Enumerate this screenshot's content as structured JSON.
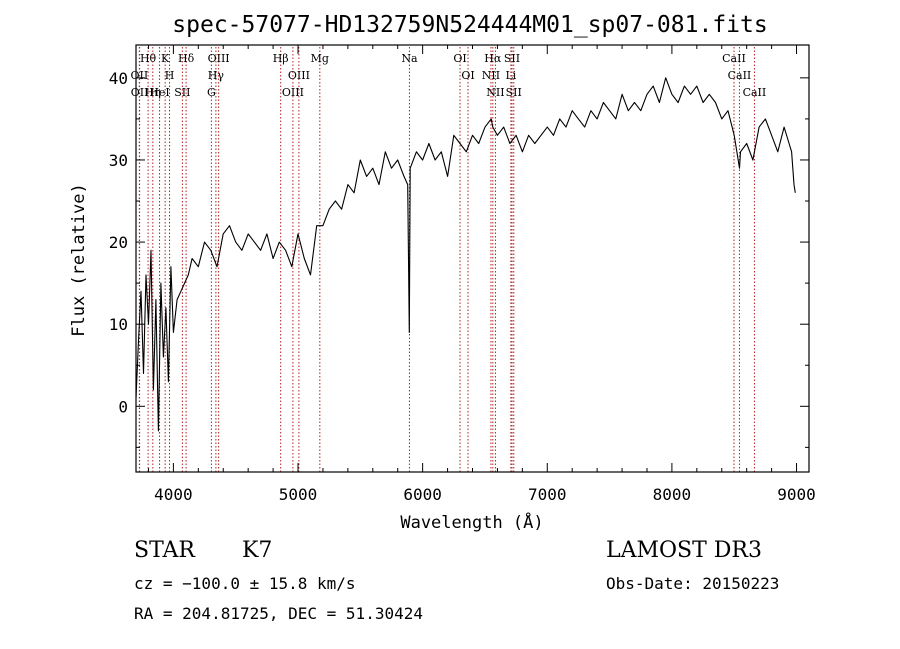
{
  "chart_data": {
    "type": "line",
    "title": "spec-57077-HD132759N524444M01_sp07-081.fits",
    "xlabel": "Wavelength (Å)",
    "ylabel": "Flux (relative)",
    "xlim": [
      3700,
      9100
    ],
    "ylim": [
      -8,
      44
    ],
    "xticks": [
      4000,
      5000,
      6000,
      7000,
      8000,
      9000
    ],
    "yticks": [
      0,
      10,
      20,
      30,
      40
    ],
    "grid": false,
    "legend": "none",
    "series": [
      {
        "line_color": "#000000",
        "x": [
          3700,
          3720,
          3740,
          3760,
          3780,
          3800,
          3820,
          3840,
          3860,
          3880,
          3900,
          3920,
          3940,
          3960,
          3980,
          4000,
          4030,
          4060,
          4090,
          4120,
          4150,
          4200,
          4250,
          4300,
          4350,
          4400,
          4450,
          4500,
          4550,
          4600,
          4650,
          4700,
          4750,
          4800,
          4850,
          4900,
          4950,
          5000,
          5050,
          5100,
          5150,
          5200,
          5250,
          5300,
          5350,
          5400,
          5450,
          5500,
          5550,
          5600,
          5650,
          5700,
          5750,
          5800,
          5850,
          5880,
          5893,
          5900,
          5950,
          6000,
          6050,
          6100,
          6150,
          6200,
          6250,
          6300,
          6350,
          6400,
          6450,
          6500,
          6550,
          6563,
          6600,
          6650,
          6700,
          6750,
          6800,
          6850,
          6900,
          6950,
          7000,
          7050,
          7100,
          7150,
          7200,
          7250,
          7300,
          7350,
          7400,
          7450,
          7500,
          7550,
          7600,
          7650,
          7700,
          7750,
          7800,
          7850,
          7900,
          7950,
          8000,
          8050,
          8100,
          8150,
          8200,
          8250,
          8300,
          8350,
          8400,
          8450,
          8500,
          8542,
          8550,
          8600,
          8650,
          8700,
          8750,
          8800,
          8850,
          8900,
          8940,
          8960,
          8980,
          8990
        ],
        "y": [
          1,
          8,
          14,
          4,
          16,
          10,
          19,
          2,
          13,
          -3,
          15,
          6,
          12,
          3,
          17,
          9,
          13,
          14,
          15,
          16,
          18,
          17,
          20,
          19,
          17,
          21,
          22,
          20,
          19,
          21,
          20,
          19,
          21,
          18,
          20,
          19,
          17,
          21,
          18,
          16,
          22,
          22,
          24,
          25,
          24,
          27,
          26,
          30,
          28,
          29,
          27,
          31,
          29,
          30,
          28,
          27,
          9,
          29,
          31,
          30,
          32,
          30,
          31,
          28,
          33,
          32,
          31,
          33,
          32,
          34,
          35,
          34,
          33,
          34,
          32,
          33,
          31,
          33,
          32,
          33,
          34,
          33,
          35,
          34,
          36,
          35,
          34,
          36,
          35,
          37,
          36,
          35,
          38,
          36,
          37,
          36,
          38,
          39,
          37,
          40,
          38,
          37,
          39,
          38,
          39,
          37,
          38,
          37,
          35,
          36,
          33,
          29,
          31,
          32,
          30,
          34,
          35,
          33,
          31,
          34,
          32,
          31,
          27,
          26
        ]
      }
    ],
    "lines": [
      {
        "label": "Hθ",
        "x": 3797
      },
      {
        "label": "OII",
        "x": 3727
      },
      {
        "label": "OII",
        "x": 3729
      },
      {
        "label": "Hη",
        "x": 3835
      },
      {
        "label": "HeI",
        "x": 3889
      },
      {
        "label": "K",
        "x": 3934
      },
      {
        "label": "H",
        "x": 3969
      },
      {
        "label": "Hδ",
        "x": 4102
      },
      {
        "label": "SII",
        "x": 4072
      },
      {
        "label": "OIII",
        "x": 4363
      },
      {
        "label": "Hγ",
        "x": 4341
      },
      {
        "label": "G",
        "x": 4305
      },
      {
        "label": "Hβ",
        "x": 4861
      },
      {
        "label": "OIII",
        "x": 5007
      },
      {
        "label": "OIII",
        "x": 4959
      },
      {
        "label": "Mg",
        "x": 5175
      },
      {
        "label": "Na",
        "x": 5894
      },
      {
        "label": "OI",
        "x": 6300
      },
      {
        "label": "OI",
        "x": 6364
      },
      {
        "label": "Hα",
        "x": 6563
      },
      {
        "label": "NII",
        "x": 6548
      },
      {
        "label": "NII",
        "x": 6584
      },
      {
        "label": "SII",
        "x": 6717
      },
      {
        "label": "Li",
        "x": 6708
      },
      {
        "label": "SII",
        "x": 6731
      },
      {
        "label": "CaII",
        "x": 8498
      },
      {
        "label": "CaII",
        "x": 8542
      },
      {
        "label": "CaII",
        "x": 8662
      }
    ],
    "line_color": "#b22222"
  },
  "info": {
    "object_class": "STAR",
    "subclass": "K7",
    "survey": "LAMOST DR3",
    "cz": "cz = −100.0 ± 15.8 km/s",
    "obs_date": "Obs-Date: 20150223",
    "coords": "RA = 204.81725, DEC =  51.30424"
  }
}
